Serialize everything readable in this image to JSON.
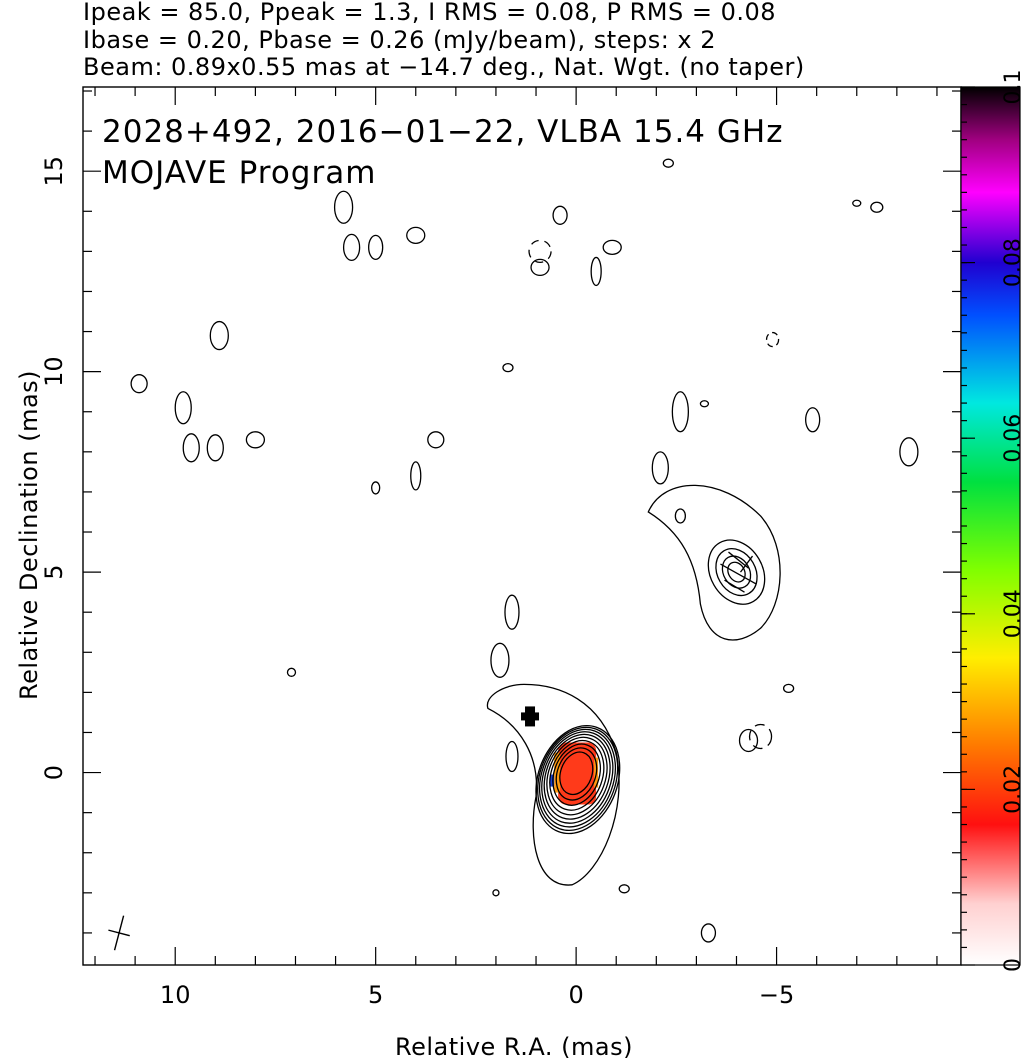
{
  "header": {
    "line1": "Ipeak = 85.0, Ppeak = 1.3, I RMS = 0.08, P RMS = 0.08",
    "line2": "Ibase = 0.20, Pbase = 0.26 (mJy/beam), steps: x 2",
    "line3": "Beam: 0.89x0.55 mas at −14.7 deg., Nat. Wgt. (no taper)"
  },
  "chart_data": {
    "type": "heatmap",
    "title_line1": "2028+492, 2016−01−22, VLBA 15.4 GHz",
    "title_line2": "MOJAVE Program",
    "xlabel": "Relative R.A. (mas)",
    "ylabel": "Relative Declination (mas)",
    "xlim": [
      12.3,
      -9.6
    ],
    "ylim": [
      -4.8,
      17.1
    ],
    "xticks": [
      10,
      5,
      0,
      -5
    ],
    "xtick_labels": [
      "10",
      "5",
      "0",
      "−5"
    ],
    "yticks": [
      0,
      5,
      10,
      15
    ],
    "ytick_labels": [
      "0",
      "5",
      "10",
      "15"
    ],
    "colorbar": {
      "range": [
        0,
        0.1
      ],
      "ticks": [
        0,
        0.02,
        0.04,
        0.06,
        0.08,
        0.1
      ],
      "tick_labels": [
        "0",
        "0.02",
        "0.04",
        "0.06",
        "0.08",
        "0.1"
      ]
    },
    "core": {
      "ra": 0.0,
      "dec": 0.0,
      "contour_levels": 10
    },
    "jet_component": {
      "ra": -4.0,
      "dec": 5.0
    },
    "beam": {
      "major_mas": 0.89,
      "minor_mas": 0.55,
      "pa_deg": -14.7
    },
    "contour_color": "#000000",
    "polarization_color": "#ff3a1a"
  }
}
